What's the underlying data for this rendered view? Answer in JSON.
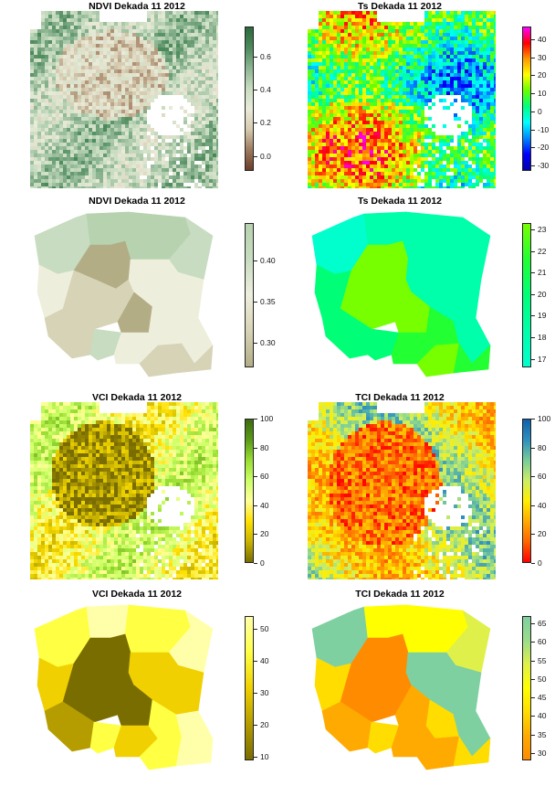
{
  "panels": [
    {
      "id": "p1",
      "title": "NDVI Dekada 11 2012",
      "type": "raster",
      "colorbar": {
        "ticks": [
          "0.0",
          "0.2",
          "0.4",
          "0.6"
        ],
        "tick_values": [
          0.0,
          0.2,
          0.4,
          0.6
        ],
        "range": [
          -0.09,
          0.78
        ],
        "colors": [
          "#6b3c2a",
          "#9e7b5e",
          "#d6cbb0",
          "#e9ead8",
          "#c7dcc0",
          "#8db592",
          "#4d8a5c",
          "#2b6a3c"
        ]
      }
    },
    {
      "id": "p2",
      "title": "Ts Dekada 11 2012",
      "type": "raster",
      "colorbar": {
        "ticks": [
          "-30",
          "-20",
          "-10",
          "0",
          "10",
          "20",
          "30",
          "40"
        ],
        "tick_values": [
          -30,
          -20,
          -10,
          0,
          10,
          20,
          30,
          40
        ],
        "range": [
          -33,
          47
        ],
        "colors": [
          "#0000aa",
          "#0000ff",
          "#0088ff",
          "#00ffff",
          "#00ff80",
          "#66ff00",
          "#ffff00",
          "#ff9900",
          "#ff0000",
          "#ff00ff"
        ]
      }
    },
    {
      "id": "p3",
      "title": "NDVI Dekada 11 2012",
      "type": "regions",
      "colorbar": {
        "ticks": [
          "0.30",
          "0.35",
          "0.40"
        ],
        "tick_values": [
          0.3,
          0.35,
          0.4
        ],
        "range": [
          0.27,
          0.445
        ],
        "colors": [
          "#b3ad86",
          "#d7d3b6",
          "#eeeedd",
          "#c7dcc0",
          "#b7d2af"
        ]
      }
    },
    {
      "id": "p4",
      "title": "Ts Dekada 11 2012",
      "type": "regions",
      "colorbar": {
        "ticks": [
          "17",
          "18",
          "19",
          "20",
          "21",
          "22",
          "23"
        ],
        "tick_values": [
          17,
          18,
          19,
          20,
          21,
          22,
          23
        ],
        "range": [
          16.6,
          23.3
        ],
        "colors": [
          "#00ffcc",
          "#00ffaa",
          "#00ff77",
          "#22ff33",
          "#77ff00"
        ]
      }
    },
    {
      "id": "p5",
      "title": "VCI Dekada 11 2012",
      "type": "raster",
      "colorbar": {
        "ticks": [
          "0",
          "20",
          "40",
          "60",
          "80",
          "100"
        ],
        "tick_values": [
          0,
          20,
          40,
          60,
          80,
          100
        ],
        "range": [
          0,
          100
        ],
        "colors": [
          "#7a6d00",
          "#c9b400",
          "#ffe000",
          "#ffff99",
          "#ccff66",
          "#99dd33",
          "#5a9a18",
          "#3d6b12"
        ]
      }
    },
    {
      "id": "p6",
      "title": "TCI Dekada 11 2012",
      "type": "raster",
      "colorbar": {
        "ticks": [
          "0",
          "20",
          "40",
          "60",
          "80",
          "100"
        ],
        "tick_values": [
          0,
          20,
          40,
          60,
          80,
          100
        ],
        "range": [
          0,
          100
        ],
        "colors": [
          "#ff0000",
          "#ff6600",
          "#ffaa00",
          "#ffee00",
          "#ccee66",
          "#77cc99",
          "#2f8fbf",
          "#1060a8"
        ]
      }
    },
    {
      "id": "p7",
      "title": "VCI Dekada 11 2012",
      "type": "regions",
      "colorbar": {
        "ticks": [
          "10",
          "20",
          "30",
          "40",
          "50"
        ],
        "tick_values": [
          10,
          20,
          30,
          40,
          50
        ],
        "range": [
          9,
          54
        ],
        "colors": [
          "#7a6d00",
          "#b59d00",
          "#f0d000",
          "#ffff44",
          "#ffffaa"
        ]
      }
    },
    {
      "id": "p8",
      "title": "TCI Dekada 11 2012",
      "type": "regions",
      "colorbar": {
        "ticks": [
          "30",
          "35",
          "40",
          "45",
          "50",
          "55",
          "60",
          "65"
        ],
        "tick_values": [
          30,
          35,
          40,
          45,
          50,
          55,
          60,
          65
        ],
        "range": [
          28,
          67
        ],
        "colors": [
          "#ff8c00",
          "#ffaa00",
          "#ffdd00",
          "#ffff00",
          "#dff04a",
          "#9bdc8a",
          "#7fd0a0"
        ]
      }
    }
  ],
  "colors": {
    "water": "#ffffff",
    "outline": "#222222"
  }
}
